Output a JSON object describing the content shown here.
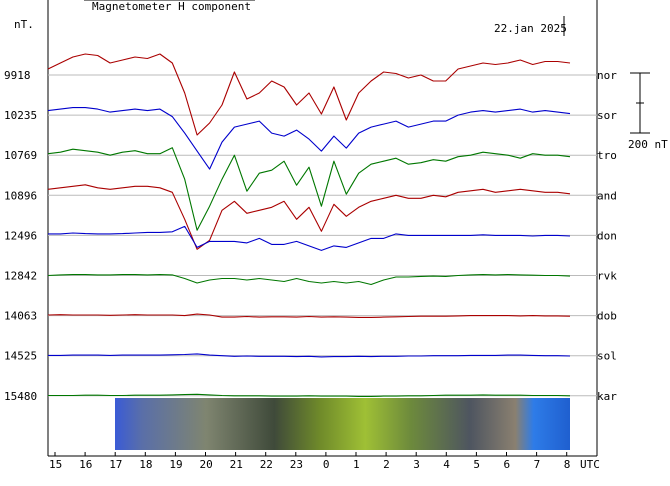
{
  "chart_data": {
    "type": "line",
    "title": "Magnetometer H component",
    "date": "22.jan 2025",
    "unit_label": "nT.",
    "scale_bar_label": "200 nT",
    "x_axis_label": "UTC",
    "x_ticks": [
      "15",
      "16",
      "17",
      "18",
      "19",
      "20",
      "21",
      "22",
      "23",
      "0",
      "1",
      "2",
      "3",
      "4",
      "5",
      "6",
      "7",
      "8"
    ],
    "grid": true,
    "colors": {
      "red": "#aa0000",
      "blue": "#0000cc",
      "green": "#007700",
      "grid": "#bbbbbb"
    },
    "series": [
      {
        "name": "nor",
        "baseline": "9918",
        "color": "#aa0000",
        "values": [
          20,
          40,
          60,
          70,
          65,
          40,
          50,
          60,
          55,
          70,
          40,
          -60,
          -200,
          -160,
          -100,
          10,
          -80,
          -60,
          -20,
          -40,
          -100,
          -60,
          -130,
          -40,
          -150,
          -60,
          -20,
          10,
          5,
          -10,
          0,
          -20,
          -20,
          20,
          30,
          40,
          35,
          40,
          50,
          35,
          45,
          45,
          40
        ]
      },
      {
        "name": "sor",
        "baseline": "10235",
        "color": "#0000cc",
        "values": [
          15,
          20,
          25,
          25,
          20,
          10,
          15,
          20,
          15,
          20,
          -5,
          -60,
          -120,
          -180,
          -90,
          -40,
          -30,
          -20,
          -60,
          -70,
          -50,
          -80,
          -120,
          -70,
          -110,
          -60,
          -40,
          -30,
          -20,
          -40,
          -30,
          -20,
          -20,
          0,
          10,
          15,
          10,
          15,
          20,
          10,
          15,
          10,
          5
        ]
      },
      {
        "name": "tro",
        "baseline": "10769",
        "color": "#007700",
        "values": [
          5,
          10,
          20,
          15,
          10,
          0,
          10,
          15,
          5,
          5,
          25,
          -80,
          -250,
          -170,
          -80,
          0,
          -120,
          -60,
          -50,
          -20,
          -100,
          -40,
          -170,
          -20,
          -130,
          -60,
          -30,
          -20,
          -10,
          -30,
          -25,
          -15,
          -20,
          -5,
          0,
          10,
          5,
          0,
          -10,
          5,
          0,
          0,
          -5
        ]
      },
      {
        "name": "and",
        "baseline": "10896",
        "color": "#aa0000",
        "values": [
          20,
          25,
          30,
          35,
          25,
          20,
          25,
          30,
          30,
          25,
          10,
          -80,
          -180,
          -150,
          -50,
          -20,
          -60,
          -50,
          -40,
          -20,
          -80,
          -40,
          -120,
          -30,
          -70,
          -40,
          -20,
          -10,
          0,
          -10,
          -10,
          0,
          -5,
          10,
          15,
          20,
          10,
          15,
          20,
          15,
          10,
          10,
          5
        ]
      },
      {
        "name": "don",
        "baseline": "12496",
        "color": "#0000cc",
        "values": [
          5,
          5,
          8,
          6,
          5,
          5,
          6,
          8,
          10,
          10,
          12,
          30,
          -40,
          -20,
          -20,
          -20,
          -25,
          -10,
          -30,
          -30,
          -20,
          -35,
          -50,
          -35,
          -40,
          -25,
          -10,
          -10,
          5,
          0,
          0,
          0,
          0,
          0,
          0,
          2,
          0,
          0,
          0,
          -2,
          0,
          0,
          -2
        ]
      },
      {
        "name": "rvk",
        "baseline": "12842",
        "color": "#007700",
        "values": [
          0,
          2,
          3,
          3,
          2,
          2,
          3,
          3,
          2,
          3,
          2,
          -10,
          -25,
          -15,
          -10,
          -10,
          -15,
          -10,
          -15,
          -20,
          -10,
          -20,
          -25,
          -20,
          -25,
          -20,
          -30,
          -15,
          -5,
          -5,
          -3,
          -2,
          -3,
          0,
          2,
          3,
          2,
          3,
          2,
          1,
          0,
          0,
          -2
        ]
      },
      {
        "name": "dob",
        "baseline": "14063",
        "color": "#aa0000",
        "values": [
          2,
          3,
          2,
          2,
          2,
          1,
          2,
          3,
          2,
          2,
          2,
          0,
          5,
          2,
          -5,
          -5,
          -3,
          -5,
          -4,
          -4,
          -5,
          -3,
          -5,
          -4,
          -5,
          -6,
          -6,
          -5,
          -4,
          -3,
          -2,
          -2,
          -2,
          -1,
          0,
          0,
          0,
          0,
          -1,
          0,
          -1,
          -1,
          -2
        ]
      },
      {
        "name": "sol",
        "baseline": "14525",
        "color": "#0000cc",
        "values": [
          1,
          1,
          2,
          2,
          2,
          1,
          2,
          2,
          2,
          2,
          3,
          4,
          6,
          2,
          0,
          -2,
          -1,
          -2,
          -2,
          -2,
          -3,
          -2,
          -4,
          -3,
          -3,
          -2,
          -3,
          -2,
          -2,
          -1,
          -1,
          0,
          0,
          0,
          1,
          1,
          1,
          2,
          2,
          1,
          0,
          0,
          -1
        ]
      },
      {
        "name": "kar",
        "baseline": "15480",
        "color": "#007700",
        "values": [
          1,
          1,
          1,
          2,
          2,
          1,
          1,
          2,
          2,
          2,
          3,
          4,
          5,
          3,
          1,
          0,
          0,
          0,
          -1,
          -1,
          -1,
          0,
          -1,
          -1,
          -1,
          -2,
          -2,
          -1,
          -1,
          0,
          0,
          1,
          2,
          2,
          2,
          3,
          2,
          2,
          2,
          1,
          1,
          1,
          0
        ]
      }
    ]
  }
}
